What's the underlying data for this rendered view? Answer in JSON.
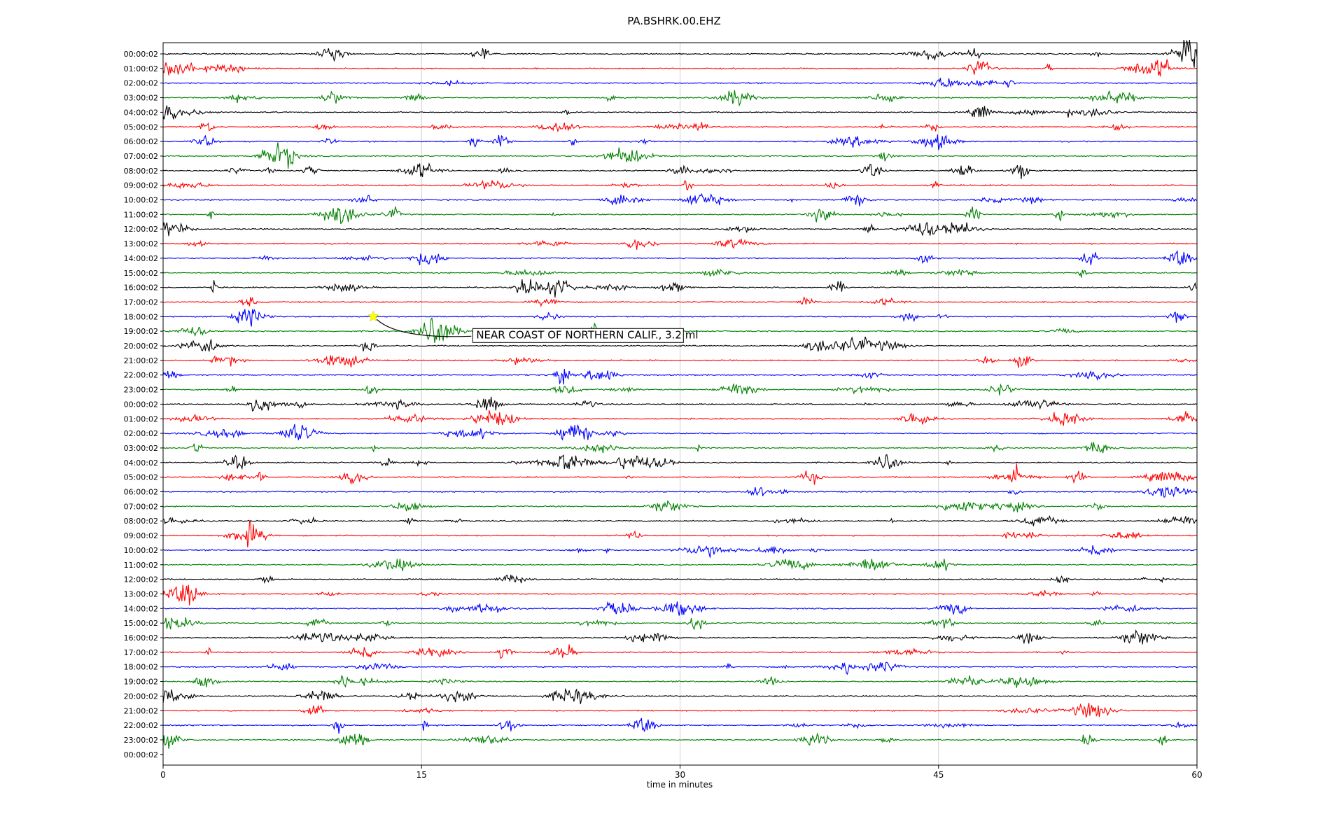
{
  "chart_data": {
    "type": "line",
    "title": "PA.BSHRK.00.EHZ",
    "xlabel": "time in minutes",
    "xlim": [
      0,
      60
    ],
    "x_ticks": [
      0,
      15,
      30,
      45,
      60
    ],
    "x_tick_labels": [
      "0",
      "15",
      "30",
      "45",
      "60"
    ],
    "grid": "vertical lines at 15, 30, 45",
    "line_colors": [
      "#000000",
      "#ff0000",
      "#0000ff",
      "#008000"
    ],
    "rows": [
      "00:00:02",
      "01:00:02",
      "02:00:02",
      "03:00:02",
      "04:00:02",
      "05:00:02",
      "06:00:02",
      "07:00:02",
      "08:00:02",
      "09:00:02",
      "10:00:02",
      "11:00:02",
      "12:00:02",
      "13:00:02",
      "14:00:02",
      "15:00:02",
      "16:00:02",
      "17:00:02",
      "18:00:02",
      "19:00:02",
      "20:00:02",
      "21:00:02",
      "22:00:02",
      "23:00:02",
      "00:00:02",
      "01:00:02",
      "02:00:02",
      "03:00:02",
      "04:00:02",
      "05:00:02",
      "06:00:02",
      "07:00:02",
      "08:00:02",
      "09:00:02",
      "10:00:02",
      "11:00:02",
      "12:00:02",
      "13:00:02",
      "14:00:02",
      "15:00:02",
      "16:00:02",
      "17:00:02",
      "18:00:02",
      "19:00:02",
      "20:00:02",
      "21:00:02",
      "22:00:02",
      "23:00:02",
      "00:00:02"
    ],
    "event": {
      "label": "NEAR COAST OF NORTHERN CALIF., 3.2 ml",
      "row_index": 18,
      "minute": 12.2,
      "marker": "star",
      "marker_color": "#ffff00"
    }
  }
}
